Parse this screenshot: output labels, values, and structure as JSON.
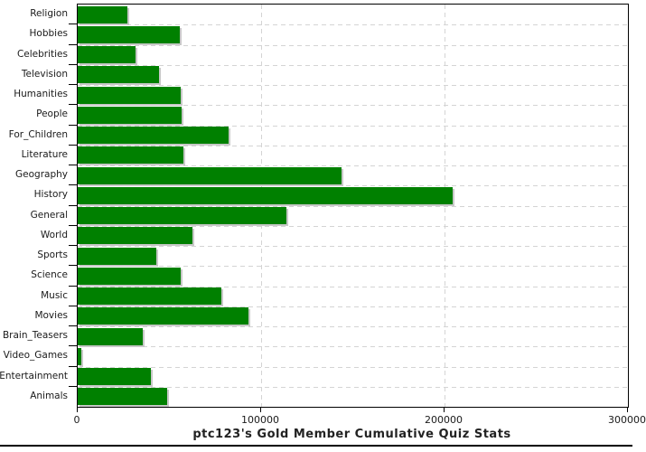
{
  "chart_data": {
    "type": "bar",
    "orientation": "horizontal",
    "title": "ptc123's Gold Member Cumulative Quiz Stats",
    "categories": [
      "Religion",
      "Hobbies",
      "Celebrities",
      "Television",
      "Humanities",
      "People",
      "For_Children",
      "Literature",
      "Geography",
      "History",
      "General",
      "World",
      "Sports",
      "Science",
      "Music",
      "Movies",
      "Brain_Teasers",
      "Video_Games",
      "Entertainment",
      "Animals"
    ],
    "values": [
      27000,
      55500,
      31500,
      44500,
      56000,
      56500,
      82000,
      57500,
      144000,
      204500,
      114000,
      62500,
      43000,
      56000,
      78500,
      93000,
      35500,
      2000,
      40000,
      48500
    ],
    "xlim": [
      0,
      300000
    ],
    "x_ticks": [
      0,
      100000,
      200000,
      300000
    ],
    "x_tick_labels": [
      "0",
      "100000",
      "200000",
      "300000"
    ],
    "xlabel": "",
    "ylabel": "",
    "legend": null,
    "grid": "dashed",
    "grid_color": "#d4d4d4",
    "bar_color": "#008000",
    "shadow_color": "#c8c8c8",
    "axis_color": "#000000",
    "background_color": "#ffffff"
  }
}
